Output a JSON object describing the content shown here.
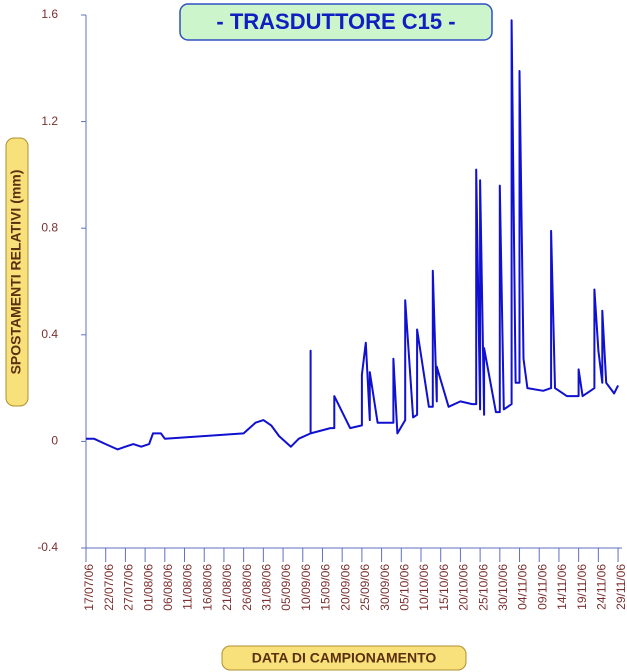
{
  "chart_data": {
    "type": "line",
    "title": "- TRASDUTTORE C15 -",
    "y_label": "SPOSTAMENTI RELATIVI (mm)",
    "x_label": "DATA DI CAMPIONAMENTO",
    "xlim": [
      "2006-07-17",
      "2006-11-30"
    ],
    "ylim": [
      -0.4,
      1.6
    ],
    "yticks": [
      -0.4,
      0,
      0.4,
      0.8,
      1.2,
      1.6
    ],
    "xticks": [
      {
        "value": "2006-07-17",
        "label": "17/07/06"
      },
      {
        "value": "2006-07-22",
        "label": "22/07/06"
      },
      {
        "value": "2006-07-27",
        "label": "27/07/06"
      },
      {
        "value": "2006-08-01",
        "label": "01/08/06"
      },
      {
        "value": "2006-08-06",
        "label": "06/08/06"
      },
      {
        "value": "2006-08-11",
        "label": "11/08/06"
      },
      {
        "value": "2006-08-16",
        "label": "16/08/06"
      },
      {
        "value": "2006-08-21",
        "label": "21/08/06"
      },
      {
        "value": "2006-08-26",
        "label": "26/08/06"
      },
      {
        "value": "2006-08-31",
        "label": "31/08/06"
      },
      {
        "value": "2006-09-05",
        "label": "05/09/06"
      },
      {
        "value": "2006-09-10",
        "label": "10/09/06"
      },
      {
        "value": "2006-09-15",
        "label": "15/09/06"
      },
      {
        "value": "2006-09-20",
        "label": "20/09/06"
      },
      {
        "value": "2006-09-25",
        "label": "25/09/06"
      },
      {
        "value": "2006-09-30",
        "label": "30/09/06"
      },
      {
        "value": "2006-10-05",
        "label": "05/10/06"
      },
      {
        "value": "2006-10-10",
        "label": "10/10/06"
      },
      {
        "value": "2006-10-15",
        "label": "15/10/06"
      },
      {
        "value": "2006-10-20",
        "label": "20/10/06"
      },
      {
        "value": "2006-10-25",
        "label": "25/10/06"
      },
      {
        "value": "2006-10-30",
        "label": "30/10/06"
      },
      {
        "value": "2006-11-04",
        "label": "04/11/06"
      },
      {
        "value": "2006-11-09",
        "label": "09/11/06"
      },
      {
        "value": "2006-11-14",
        "label": "14/11/06"
      },
      {
        "value": "2006-11-19",
        "label": "19/11/06"
      },
      {
        "value": "2006-11-24",
        "label": "24/11/06"
      },
      {
        "value": "2006-11-29",
        "label": "29/11/06"
      }
    ],
    "color": "#1010d0",
    "x": [
      "2006-07-17",
      "2006-07-19",
      "2006-07-22",
      "2006-07-25",
      "2006-07-27",
      "2006-07-29",
      "2006-07-31",
      "2006-08-02",
      "2006-08-03",
      "2006-08-05",
      "2006-08-06",
      "2006-08-26",
      "2006-08-29",
      "2006-08-31",
      "2006-09-02",
      "2006-09-04",
      "2006-09-07",
      "2006-09-09",
      "2006-09-12",
      "2006-09-12",
      "2006-09-12",
      "2006-09-17",
      "2006-09-18",
      "2006-09-18",
      "2006-09-22",
      "2006-09-25",
      "2006-09-25",
      "2006-09-26",
      "2006-09-27",
      "2006-09-27",
      "2006-09-29",
      "2006-10-03",
      "2006-10-03",
      "2006-10-04",
      "2006-10-06",
      "2006-10-06",
      "2006-10-08",
      "2006-10-09",
      "2006-10-09",
      "2006-10-12",
      "2006-10-13",
      "2006-10-13",
      "2006-10-14",
      "2006-10-14",
      "2006-10-17",
      "2006-10-20",
      "2006-10-23",
      "2006-10-24",
      "2006-10-24",
      "2006-10-25",
      "2006-10-25",
      "2006-10-26",
      "2006-10-26",
      "2006-10-29",
      "2006-10-30",
      "2006-10-30",
      "2006-10-31",
      "2006-11-02",
      "2006-11-02",
      "2006-11-03",
      "2006-11-04",
      "2006-11-04",
      "2006-11-05",
      "2006-11-06",
      "2006-11-10",
      "2006-11-12",
      "2006-11-12",
      "2006-11-13",
      "2006-11-16",
      "2006-11-19",
      "2006-11-19",
      "2006-11-20",
      "2006-11-22",
      "2006-11-23",
      "2006-11-23",
      "2006-11-24",
      "2006-11-25",
      "2006-11-25",
      "2006-11-26",
      "2006-11-28",
      "2006-11-29"
    ],
    "values": [
      0.01,
      0.01,
      -0.01,
      -0.03,
      -0.02,
      -0.01,
      -0.02,
      -0.01,
      0.03,
      0.03,
      0.01,
      0.03,
      0.07,
      0.08,
      0.06,
      0.02,
      -0.02,
      0.01,
      0.03,
      0.34,
      0.03,
      0.05,
      0.05,
      0.17,
      0.05,
      0.06,
      0.25,
      0.37,
      0.08,
      0.26,
      0.07,
      0.07,
      0.31,
      0.03,
      0.08,
      0.53,
      0.09,
      0.1,
      0.42,
      0.13,
      0.13,
      0.64,
      0.15,
      0.28,
      0.13,
      0.15,
      0.14,
      0.14,
      1.02,
      0.12,
      0.98,
      0.1,
      0.35,
      0.11,
      0.11,
      0.96,
      0.12,
      0.14,
      1.58,
      0.22,
      0.22,
      1.39,
      0.31,
      0.2,
      0.19,
      0.2,
      0.79,
      0.2,
      0.17,
      0.17,
      0.27,
      0.17,
      0.19,
      0.2,
      0.57,
      0.34,
      0.22,
      0.49,
      0.22,
      0.18,
      0.21
    ]
  }
}
